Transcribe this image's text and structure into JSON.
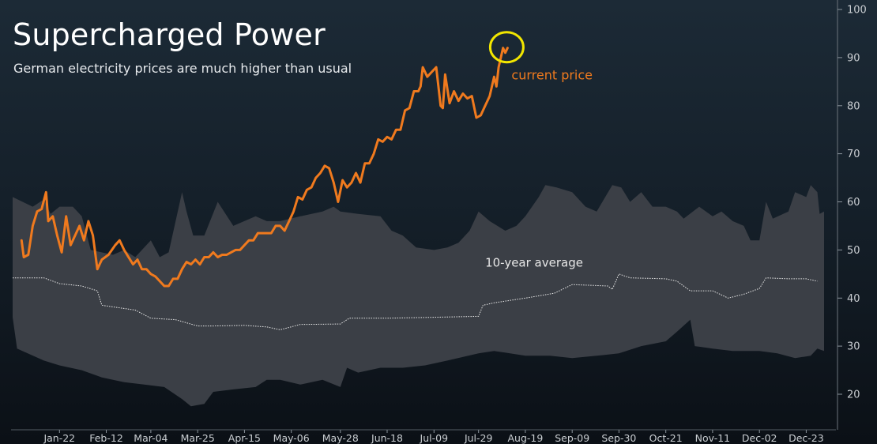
{
  "chart_data": {
    "type": "area",
    "title": "Supercharged Power",
    "subtitle": "German electricity prices are much higher than usual",
    "xlabel": "",
    "ylabel": "",
    "ylim": [
      15,
      101
    ],
    "y_ticks": [
      20,
      30,
      40,
      50,
      60,
      70,
      80,
      90,
      100
    ],
    "x_domain": [
      "01-01",
      "12-31"
    ],
    "x_ticks": [
      {
        "date": "01-22",
        "label": "Jan-22"
      },
      {
        "date": "02-12",
        "label": "Feb-12"
      },
      {
        "date": "03-04",
        "label": "Mar-04"
      },
      {
        "date": "03-25",
        "label": "Mar-25"
      },
      {
        "date": "04-15",
        "label": "Apr-15"
      },
      {
        "date": "05-06",
        "label": "May-06"
      },
      {
        "date": "05-28",
        "label": "May-28"
      },
      {
        "date": "06-18",
        "label": "Jun-18"
      },
      {
        "date": "07-09",
        "label": "Jul-09"
      },
      {
        "date": "07-29",
        "label": "Jul-29"
      },
      {
        "date": "08-19",
        "label": "Aug-19"
      },
      {
        "date": "09-09",
        "label": "Sep-09"
      },
      {
        "date": "09-30",
        "label": "Sep-30"
      },
      {
        "date": "10-21",
        "label": "Oct-21"
      },
      {
        "date": "11-11",
        "label": "Nov-11"
      },
      {
        "date": "12-02",
        "label": "Dec-02"
      },
      {
        "date": "12-23",
        "label": "Dec-23"
      }
    ],
    "grid": false,
    "legend": "none",
    "colors": {
      "current": "#f07a1e",
      "band": "#3b3f46",
      "average": "#e8e8e8",
      "marker": "#f2e600",
      "axis": "#c9cdd1"
    },
    "series": [
      {
        "name": "current price",
        "style": "line",
        "points": [
          [
            "01-05",
            52
          ],
          [
            "01-06",
            48.5
          ],
          [
            "01-08",
            49
          ],
          [
            "01-10",
            55
          ],
          [
            "01-12",
            58
          ],
          [
            "01-14",
            58.5
          ],
          [
            "01-16",
            62
          ],
          [
            "01-17",
            56
          ],
          [
            "01-19",
            57
          ],
          [
            "01-21",
            53
          ],
          [
            "01-23",
            49.5
          ],
          [
            "01-25",
            57
          ],
          [
            "01-27",
            51
          ],
          [
            "01-29",
            53
          ],
          [
            "01-31",
            55
          ],
          [
            "02-02",
            52
          ],
          [
            "02-04",
            56
          ],
          [
            "02-06",
            53
          ],
          [
            "02-08",
            46
          ],
          [
            "02-10",
            48
          ],
          [
            "02-13",
            49
          ],
          [
            "02-16",
            51
          ],
          [
            "02-18",
            52
          ],
          [
            "02-20",
            50
          ],
          [
            "02-22",
            48.5
          ],
          [
            "02-24",
            47
          ],
          [
            "02-26",
            48
          ],
          [
            "02-28",
            46
          ],
          [
            "03-02",
            46
          ],
          [
            "03-04",
            45
          ],
          [
            "03-06",
            44.5
          ],
          [
            "03-08",
            43.5
          ],
          [
            "03-10",
            42.5
          ],
          [
            "03-12",
            42.5
          ],
          [
            "03-14",
            44
          ],
          [
            "03-16",
            44
          ],
          [
            "03-18",
            46
          ],
          [
            "03-20",
            47.5
          ],
          [
            "03-22",
            47
          ],
          [
            "03-24",
            48
          ],
          [
            "03-26",
            47
          ],
          [
            "03-28",
            48.5
          ],
          [
            "03-30",
            48.5
          ],
          [
            "04-01",
            49.5
          ],
          [
            "04-03",
            48.5
          ],
          [
            "04-05",
            49
          ],
          [
            "04-07",
            49
          ],
          [
            "04-09",
            49.5
          ],
          [
            "04-11",
            50
          ],
          [
            "04-13",
            50
          ],
          [
            "04-15",
            51
          ],
          [
            "04-17",
            52
          ],
          [
            "04-19",
            52
          ],
          [
            "04-21",
            53.5
          ],
          [
            "04-23",
            53.5
          ],
          [
            "04-25",
            53.5
          ],
          [
            "04-27",
            53.5
          ],
          [
            "04-29",
            55
          ],
          [
            "05-01",
            55
          ],
          [
            "05-03",
            54
          ],
          [
            "05-05",
            56
          ],
          [
            "05-07",
            58
          ],
          [
            "05-09",
            61
          ],
          [
            "05-11",
            60.5
          ],
          [
            "05-13",
            62.5
          ],
          [
            "05-15",
            63
          ],
          [
            "05-17",
            65
          ],
          [
            "05-19",
            66
          ],
          [
            "05-21",
            67.5
          ],
          [
            "05-23",
            67
          ],
          [
            "05-25",
            64
          ],
          [
            "05-27",
            60
          ],
          [
            "05-29",
            64.5
          ],
          [
            "05-31",
            63
          ],
          [
            "06-02",
            64
          ],
          [
            "06-04",
            66
          ],
          [
            "06-06",
            64
          ],
          [
            "06-08",
            68
          ],
          [
            "06-10",
            68
          ],
          [
            "06-12",
            70
          ],
          [
            "06-14",
            73
          ],
          [
            "06-16",
            72.5
          ],
          [
            "06-18",
            73.5
          ],
          [
            "06-20",
            73
          ],
          [
            "06-22",
            75
          ],
          [
            "06-24",
            75
          ],
          [
            "06-26",
            79
          ],
          [
            "06-28",
            79.5
          ],
          [
            "06-30",
            83
          ],
          [
            "07-02",
            83
          ],
          [
            "07-03",
            84
          ],
          [
            "07-04",
            88
          ],
          [
            "07-06",
            86
          ],
          [
            "07-08",
            87
          ],
          [
            "07-10",
            88
          ],
          [
            "07-12",
            80
          ],
          [
            "07-13",
            79.5
          ],
          [
            "07-14",
            86.5
          ],
          [
            "07-16",
            80.5
          ],
          [
            "07-18",
            83
          ],
          [
            "07-20",
            81
          ],
          [
            "07-22",
            82.5
          ],
          [
            "07-24",
            81.5
          ],
          [
            "07-26",
            82
          ],
          [
            "07-28",
            77.5
          ],
          [
            "07-30",
            78
          ],
          [
            "08-01",
            80
          ],
          [
            "08-03",
            82
          ],
          [
            "08-05",
            86
          ],
          [
            "08-06",
            84
          ],
          [
            "08-07",
            88
          ],
          [
            "08-08",
            90
          ],
          [
            "08-09",
            92
          ],
          [
            "08-10",
            91
          ],
          [
            "08-11",
            92
          ]
        ]
      },
      {
        "name": "10-year average",
        "style": "dotted",
        "points": [
          [
            "01-01",
            44.2
          ],
          [
            "01-15",
            44.2
          ],
          [
            "01-22",
            43
          ],
          [
            "02-01",
            42.5
          ],
          [
            "02-08",
            41.5
          ],
          [
            "02-10",
            38.5
          ],
          [
            "02-25",
            37.5
          ],
          [
            "03-04",
            35.8
          ],
          [
            "03-15",
            35.5
          ],
          [
            "03-25",
            34.2
          ],
          [
            "04-01",
            34.2
          ],
          [
            "04-15",
            34.3
          ],
          [
            "04-25",
            34
          ],
          [
            "05-01",
            33.4
          ],
          [
            "05-10",
            34.5
          ],
          [
            "05-28",
            34.6
          ],
          [
            "06-01",
            35.8
          ],
          [
            "06-18",
            35.8
          ],
          [
            "07-09",
            36
          ],
          [
            "07-29",
            36.2
          ],
          [
            "07-31",
            38.5
          ],
          [
            "08-05",
            39
          ],
          [
            "08-19",
            40
          ],
          [
            "09-01",
            41
          ],
          [
            "09-09",
            42.8
          ],
          [
            "09-25",
            42.5
          ],
          [
            "09-27",
            41.8
          ],
          [
            "09-30",
            45
          ],
          [
            "10-05",
            44.2
          ],
          [
            "10-21",
            44
          ],
          [
            "10-26",
            43.5
          ],
          [
            "11-01",
            41.5
          ],
          [
            "11-11",
            41.5
          ],
          [
            "11-18",
            40
          ],
          [
            "11-25",
            40.8
          ],
          [
            "12-02",
            42
          ],
          [
            "12-05",
            44.2
          ],
          [
            "12-15",
            44
          ],
          [
            "12-23",
            44
          ],
          [
            "12-28",
            43.5
          ]
        ]
      },
      {
        "name": "band upper",
        "style": "band-top",
        "points": [
          [
            "01-01",
            61
          ],
          [
            "01-10",
            59
          ],
          [
            "01-15",
            60.5
          ],
          [
            "01-18",
            57.5
          ],
          [
            "01-22",
            59
          ],
          [
            "01-28",
            59
          ],
          [
            "02-01",
            57
          ],
          [
            "02-05",
            50
          ],
          [
            "02-15",
            49
          ],
          [
            "02-20",
            50
          ],
          [
            "02-25",
            48.5
          ],
          [
            "03-01",
            50.5
          ],
          [
            "03-04",
            52
          ],
          [
            "03-08",
            48.5
          ],
          [
            "03-12",
            49.5
          ],
          [
            "03-18",
            62
          ],
          [
            "03-20",
            58
          ],
          [
            "03-23",
            53
          ],
          [
            "03-28",
            53
          ],
          [
            "04-03",
            60
          ],
          [
            "04-10",
            55
          ],
          [
            "04-20",
            57
          ],
          [
            "04-25",
            56
          ],
          [
            "05-01",
            56
          ],
          [
            "05-10",
            57
          ],
          [
            "05-20",
            58
          ],
          [
            "05-25",
            59
          ],
          [
            "05-28",
            58
          ],
          [
            "06-05",
            57.5
          ],
          [
            "06-15",
            57
          ],
          [
            "06-20",
            54
          ],
          [
            "06-25",
            53
          ],
          [
            "07-01",
            50.5
          ],
          [
            "07-09",
            50
          ],
          [
            "07-15",
            50.5
          ],
          [
            "07-20",
            51.5
          ],
          [
            "07-25",
            54
          ],
          [
            "07-29",
            58
          ],
          [
            "08-03",
            56
          ],
          [
            "08-10",
            54
          ],
          [
            "08-15",
            55
          ],
          [
            "08-19",
            57
          ],
          [
            "08-25",
            61
          ],
          [
            "08-28",
            63.5
          ],
          [
            "09-02",
            63
          ],
          [
            "09-09",
            62
          ],
          [
            "09-15",
            59
          ],
          [
            "09-20",
            58
          ],
          [
            "09-27",
            63.5
          ],
          [
            "10-01",
            63
          ],
          [
            "10-05",
            60
          ],
          [
            "10-10",
            62
          ],
          [
            "10-15",
            59
          ],
          [
            "10-21",
            59
          ],
          [
            "10-26",
            58
          ],
          [
            "10-29",
            56.5
          ],
          [
            "11-05",
            59
          ],
          [
            "11-11",
            57
          ],
          [
            "11-15",
            58
          ],
          [
            "11-20",
            56
          ],
          [
            "11-25",
            55
          ],
          [
            "11-28",
            52
          ],
          [
            "12-02",
            52
          ],
          [
            "12-05",
            60
          ],
          [
            "12-08",
            56.5
          ],
          [
            "12-15",
            58
          ],
          [
            "12-18",
            62
          ],
          [
            "12-23",
            61
          ],
          [
            "12-25",
            63.5
          ],
          [
            "12-28",
            62
          ],
          [
            "12-29",
            57.5
          ],
          [
            "12-31",
            58
          ]
        ]
      },
      {
        "name": "band lower",
        "style": "band-bottom",
        "points": [
          [
            "01-01",
            36
          ],
          [
            "01-03",
            29.5
          ],
          [
            "01-15",
            27
          ],
          [
            "01-22",
            26
          ],
          [
            "02-01",
            25
          ],
          [
            "02-10",
            23.5
          ],
          [
            "02-20",
            22.5
          ],
          [
            "03-01",
            22
          ],
          [
            "03-10",
            21.5
          ],
          [
            "03-18",
            19
          ],
          [
            "03-22",
            17.5
          ],
          [
            "03-28",
            18
          ],
          [
            "04-01",
            20.5
          ],
          [
            "04-10",
            21
          ],
          [
            "04-20",
            21.5
          ],
          [
            "04-25",
            23
          ],
          [
            "05-01",
            23
          ],
          [
            "05-10",
            22
          ],
          [
            "05-20",
            23
          ],
          [
            "05-28",
            21.5
          ],
          [
            "05-31",
            25.5
          ],
          [
            "06-05",
            24.5
          ],
          [
            "06-15",
            25.5
          ],
          [
            "06-25",
            25.5
          ],
          [
            "07-05",
            26
          ],
          [
            "07-15",
            27
          ],
          [
            "07-29",
            28.5
          ],
          [
            "08-05",
            29
          ],
          [
            "08-19",
            28
          ],
          [
            "08-30",
            28
          ],
          [
            "09-09",
            27.5
          ],
          [
            "09-20",
            28
          ],
          [
            "09-30",
            28.5
          ],
          [
            "10-10",
            30
          ],
          [
            "10-21",
            31
          ],
          [
            "10-26",
            33
          ],
          [
            "11-01",
            35.5
          ],
          [
            "11-03",
            30
          ],
          [
            "11-11",
            29.5
          ],
          [
            "11-20",
            29
          ],
          [
            "12-02",
            29
          ],
          [
            "12-10",
            28.5
          ],
          [
            "12-18",
            27.5
          ],
          [
            "12-25",
            28
          ],
          [
            "12-28",
            29.5
          ],
          [
            "12-31",
            29
          ]
        ]
      }
    ],
    "annotations": [
      {
        "text": "current price",
        "color": "#f07a1e"
      },
      {
        "text": "10-year average",
        "color": "#e8e8e8"
      }
    ]
  }
}
